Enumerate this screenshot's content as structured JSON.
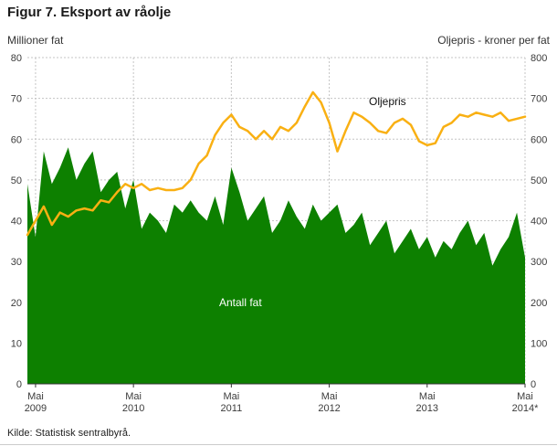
{
  "page": {
    "title": "Figur 7. Eksport av råolje",
    "source": "Kilde: Statistisk sentralbyrå."
  },
  "chart_data": {
    "type": "area+line",
    "title": "Figur 7. Eksport av råolje",
    "x_unit": "month",
    "x_start": "2009-04",
    "x_end": "2014-05",
    "grid_color": "#c4c4c4",
    "left_axis": {
      "title": "Millioner fat",
      "min": 0,
      "max": 80,
      "ticks": [
        0,
        10,
        20,
        30,
        40,
        50,
        60,
        70,
        80
      ]
    },
    "right_axis": {
      "title": "Oljepris - kroner per fat",
      "min": 0,
      "max": 800,
      "ticks": [
        0,
        100,
        200,
        300,
        400,
        500,
        600,
        700,
        800
      ]
    },
    "x_ticks": {
      "indices": [
        1,
        13,
        25,
        37,
        49,
        61
      ],
      "labels": [
        {
          "month": "Mai",
          "year": "2009"
        },
        {
          "month": "Mai",
          "year": "2010"
        },
        {
          "month": "Mai",
          "year": "2011"
        },
        {
          "month": "Mai",
          "year": "2012"
        },
        {
          "month": "Mai",
          "year": "2013"
        },
        {
          "month": "Mai",
          "year": "2014*"
        }
      ]
    },
    "series": [
      {
        "name": "Antall fat",
        "type": "area",
        "axis": "left",
        "color": "#0d8000",
        "values": [
          49,
          36,
          57,
          49,
          53,
          58,
          50,
          54,
          57,
          47,
          50,
          52,
          43,
          50,
          38,
          42,
          40,
          37,
          44,
          42,
          45,
          42,
          40,
          46,
          39,
          53,
          47,
          40,
          43,
          46,
          37,
          40,
          45,
          41,
          38,
          44,
          40,
          42,
          44,
          37,
          39,
          42,
          34,
          37,
          40,
          32,
          35,
          38,
          33,
          36,
          31,
          35,
          33,
          37,
          40,
          34,
          37,
          29,
          33,
          36,
          42,
          31
        ]
      },
      {
        "name": "Oljepris",
        "type": "line",
        "axis": "right",
        "color": "#f9b013",
        "values": [
          365,
          400,
          435,
          390,
          420,
          410,
          425,
          430,
          425,
          450,
          445,
          470,
          490,
          480,
          490,
          475,
          480,
          475,
          475,
          480,
          500,
          540,
          560,
          610,
          640,
          660,
          630,
          620,
          600,
          620,
          600,
          630,
          620,
          640,
          680,
          715,
          690,
          640,
          570,
          620,
          665,
          655,
          640,
          620,
          615,
          640,
          650,
          635,
          595,
          585,
          590,
          630,
          640,
          660,
          655,
          665,
          660,
          655,
          665,
          645,
          650,
          655
        ]
      }
    ]
  }
}
